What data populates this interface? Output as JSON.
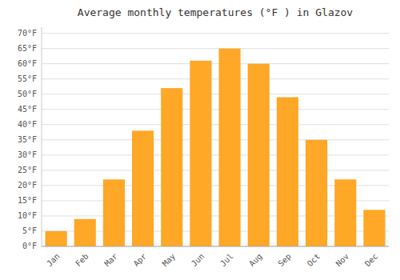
{
  "chart_data": {
    "type": "bar",
    "title": "Average monthly temperatures (°F ) in Glazov",
    "categories": [
      "Jan",
      "Feb",
      "Mar",
      "Apr",
      "May",
      "Jun",
      "Jul",
      "Aug",
      "Sep",
      "Oct",
      "Nov",
      "Dec"
    ],
    "values": [
      5,
      9,
      22,
      38,
      52,
      61,
      65,
      60,
      49,
      35,
      22,
      12
    ],
    "color": "#FFA726",
    "ylim": [
      0,
      72
    ],
    "yticks": [
      {
        "value": 0,
        "label": "0°F"
      },
      {
        "value": 5,
        "label": "5°F"
      },
      {
        "value": 10,
        "label": "10°F"
      },
      {
        "value": 15,
        "label": "15°F"
      },
      {
        "value": 20,
        "label": "20°F"
      },
      {
        "value": 25,
        "label": "25°F"
      },
      {
        "value": 30,
        "label": "30°F"
      },
      {
        "value": 35,
        "label": "35°F"
      },
      {
        "value": 40,
        "label": "40°F"
      },
      {
        "value": 45,
        "label": "45°F"
      },
      {
        "value": 50,
        "label": "50°F"
      },
      {
        "value": 55,
        "label": "55°F"
      },
      {
        "value": 60,
        "label": "60°F"
      },
      {
        "value": 65,
        "label": "65°F"
      },
      {
        "value": 70,
        "label": "70°F"
      }
    ],
    "grid": true
  }
}
